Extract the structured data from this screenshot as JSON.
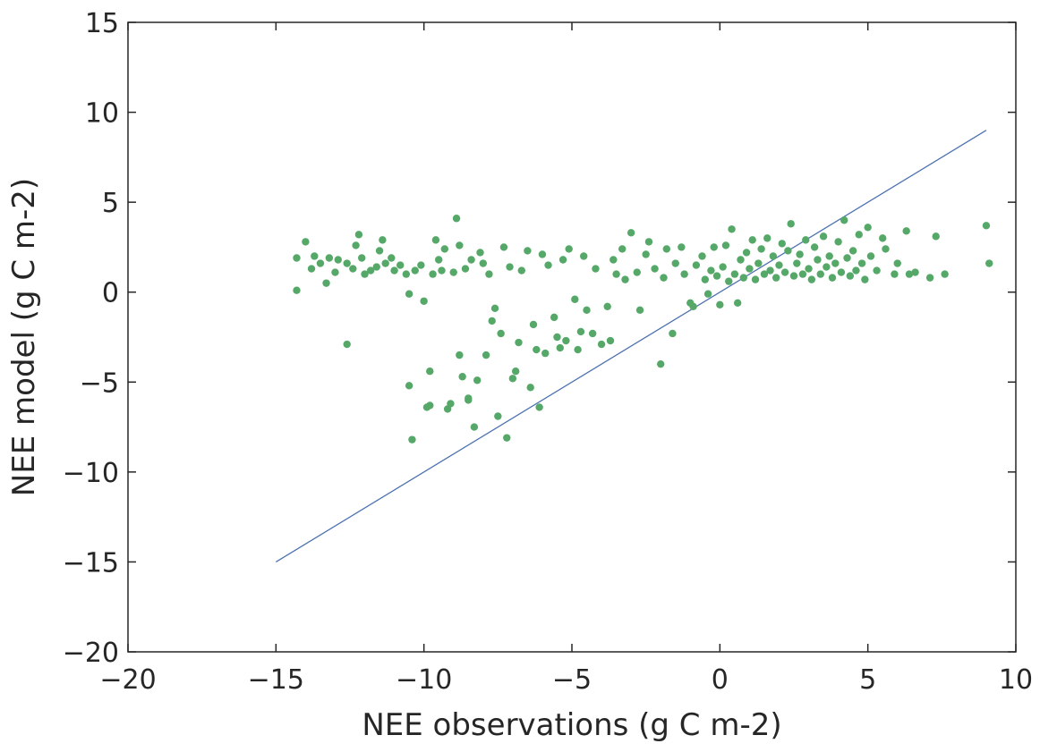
{
  "chart_data": {
    "type": "scatter",
    "title": "",
    "xlabel": "NEE observations (g C m-2)",
    "ylabel": "NEE model (g C m-2)",
    "xlim": [
      -20,
      10
    ],
    "ylim": [
      -20,
      15
    ],
    "x_ticks": [
      -20,
      -15,
      -10,
      -5,
      0,
      5,
      10
    ],
    "y_ticks": [
      -20,
      -15,
      -10,
      -5,
      0,
      5,
      10,
      15
    ],
    "x_tick_labels": [
      "−20",
      "−15",
      "−10",
      "−5",
      "0",
      "5",
      "10"
    ],
    "y_tick_labels": [
      "−20",
      "−15",
      "−10",
      "−5",
      "0",
      "5",
      "10",
      "15"
    ],
    "grid": false,
    "colors": {
      "points": "#55a868",
      "line": "#4c72b0",
      "axes": "#262626"
    },
    "reference_line": {
      "x": [
        -15,
        9
      ],
      "y": [
        -15,
        9
      ]
    },
    "points": [
      [
        -14.3,
        1.9
      ],
      [
        -14.3,
        0.1
      ],
      [
        -14.0,
        2.8
      ],
      [
        -13.8,
        1.3
      ],
      [
        -13.7,
        2.0
      ],
      [
        -13.5,
        1.6
      ],
      [
        -13.3,
        0.5
      ],
      [
        -13.2,
        1.9
      ],
      [
        -13.0,
        1.1
      ],
      [
        -12.9,
        1.8
      ],
      [
        -12.6,
        1.6
      ],
      [
        -12.6,
        -2.9
      ],
      [
        -12.4,
        1.3
      ],
      [
        -12.3,
        2.6
      ],
      [
        -12.2,
        3.2
      ],
      [
        -12.1,
        1.9
      ],
      [
        -12.0,
        1.0
      ],
      [
        -11.8,
        1.2
      ],
      [
        -11.6,
        1.4
      ],
      [
        -11.5,
        2.3
      ],
      [
        -11.4,
        2.9
      ],
      [
        -11.3,
        1.6
      ],
      [
        -11.1,
        1.9
      ],
      [
        -11.0,
        1.2
      ],
      [
        -10.8,
        1.5
      ],
      [
        -10.6,
        1.0
      ],
      [
        -10.5,
        -0.1
      ],
      [
        -10.5,
        -5.2
      ],
      [
        -10.4,
        -8.2
      ],
      [
        -10.3,
        1.2
      ],
      [
        -10.1,
        1.5
      ],
      [
        -10.0,
        -0.5
      ],
      [
        -9.9,
        -6.4
      ],
      [
        -9.8,
        -6.3
      ],
      [
        -9.8,
        -4.4
      ],
      [
        -9.7,
        1.0
      ],
      [
        -9.6,
        2.9
      ],
      [
        -9.5,
        1.8
      ],
      [
        -9.4,
        1.2
      ],
      [
        -9.3,
        2.4
      ],
      [
        -9.2,
        -6.5
      ],
      [
        -9.1,
        -6.2
      ],
      [
        -9.0,
        1.1
      ],
      [
        -8.9,
        4.1
      ],
      [
        -8.8,
        2.6
      ],
      [
        -8.8,
        -3.5
      ],
      [
        -8.7,
        -4.7
      ],
      [
        -8.6,
        1.3
      ],
      [
        -8.5,
        -5.9
      ],
      [
        -8.5,
        -6.0
      ],
      [
        -8.4,
        1.8
      ],
      [
        -8.3,
        -7.5
      ],
      [
        -8.2,
        -4.9
      ],
      [
        -8.1,
        2.2
      ],
      [
        -8.0,
        1.6
      ],
      [
        -7.9,
        -3.5
      ],
      [
        -7.8,
        1.0
      ],
      [
        -7.7,
        -1.6
      ],
      [
        -7.6,
        -0.9
      ],
      [
        -7.5,
        -6.9
      ],
      [
        -7.4,
        -2.3
      ],
      [
        -7.3,
        2.5
      ],
      [
        -7.2,
        -8.1
      ],
      [
        -7.1,
        1.4
      ],
      [
        -7.0,
        -4.8
      ],
      [
        -6.9,
        -4.4
      ],
      [
        -6.8,
        -2.8
      ],
      [
        -6.7,
        1.2
      ],
      [
        -6.5,
        2.3
      ],
      [
        -6.4,
        -5.3
      ],
      [
        -6.3,
        -1.8
      ],
      [
        -6.2,
        -3.2
      ],
      [
        -6.1,
        -6.4
      ],
      [
        -6.0,
        2.1
      ],
      [
        -5.9,
        -3.4
      ],
      [
        -5.8,
        1.5
      ],
      [
        -5.6,
        -1.4
      ],
      [
        -5.5,
        -2.5
      ],
      [
        -5.4,
        -3.1
      ],
      [
        -5.3,
        1.8
      ],
      [
        -5.2,
        -2.7
      ],
      [
        -5.1,
        2.4
      ],
      [
        -4.9,
        -0.4
      ],
      [
        -4.8,
        -3.2
      ],
      [
        -4.7,
        -2.2
      ],
      [
        -4.6,
        2.0
      ],
      [
        -4.5,
        -1.0
      ],
      [
        -4.3,
        -2.3
      ],
      [
        -4.2,
        1.3
      ],
      [
        -4.0,
        -2.9
      ],
      [
        -3.8,
        -0.8
      ],
      [
        -3.7,
        -2.7
      ],
      [
        -3.6,
        1.8
      ],
      [
        -3.5,
        1.0
      ],
      [
        -3.3,
        2.4
      ],
      [
        -3.2,
        0.7
      ],
      [
        -3.0,
        3.3
      ],
      [
        -2.8,
        1.1
      ],
      [
        -2.7,
        -1.0
      ],
      [
        -2.5,
        2.1
      ],
      [
        -2.4,
        2.8
      ],
      [
        -2.2,
        1.3
      ],
      [
        -2.0,
        -4.0
      ],
      [
        -1.9,
        0.8
      ],
      [
        -1.8,
        2.4
      ],
      [
        -1.6,
        -2.3
      ],
      [
        -1.5,
        1.6
      ],
      [
        -1.3,
        2.5
      ],
      [
        -1.2,
        1.0
      ],
      [
        -1.0,
        -0.6
      ],
      [
        -0.9,
        -0.8
      ],
      [
        -0.8,
        1.5
      ],
      [
        -0.6,
        2.0
      ],
      [
        -0.5,
        0.7
      ],
      [
        -0.4,
        -0.1
      ],
      [
        -0.3,
        1.2
      ],
      [
        -0.2,
        2.5
      ],
      [
        -0.1,
        0.9
      ],
      [
        0.0,
        -0.7
      ],
      [
        0.1,
        1.4
      ],
      [
        0.2,
        2.6
      ],
      [
        0.3,
        0.6
      ],
      [
        0.4,
        3.5
      ],
      [
        0.5,
        1.0
      ],
      [
        0.6,
        -0.6
      ],
      [
        0.7,
        1.8
      ],
      [
        0.8,
        0.8
      ],
      [
        0.9,
        2.2
      ],
      [
        1.0,
        1.3
      ],
      [
        1.1,
        2.9
      ],
      [
        1.2,
        0.7
      ],
      [
        1.3,
        1.6
      ],
      [
        1.4,
        2.4
      ],
      [
        1.5,
        1.0
      ],
      [
        1.6,
        3.0
      ],
      [
        1.7,
        1.2
      ],
      [
        1.8,
        2.0
      ],
      [
        1.9,
        0.8
      ],
      [
        2.0,
        1.5
      ],
      [
        2.1,
        2.7
      ],
      [
        2.2,
        1.1
      ],
      [
        2.3,
        2.3
      ],
      [
        2.4,
        3.8
      ],
      [
        2.5,
        0.9
      ],
      [
        2.6,
        1.6
      ],
      [
        2.7,
        2.1
      ],
      [
        2.8,
        1.0
      ],
      [
        2.9,
        2.9
      ],
      [
        3.0,
        1.3
      ],
      [
        3.1,
        0.7
      ],
      [
        3.2,
        2.5
      ],
      [
        3.3,
        1.8
      ],
      [
        3.4,
        1.0
      ],
      [
        3.5,
        3.1
      ],
      [
        3.6,
        1.4
      ],
      [
        3.7,
        2.0
      ],
      [
        3.8,
        0.8
      ],
      [
        3.9,
        1.6
      ],
      [
        4.0,
        2.8
      ],
      [
        4.1,
        1.1
      ],
      [
        4.2,
        4.0
      ],
      [
        4.3,
        1.9
      ],
      [
        4.4,
        0.9
      ],
      [
        4.5,
        2.3
      ],
      [
        4.6,
        1.2
      ],
      [
        4.7,
        3.2
      ],
      [
        4.8,
        1.6
      ],
      [
        4.9,
        0.7
      ],
      [
        5.0,
        3.6
      ],
      [
        5.1,
        2.0
      ],
      [
        5.3,
        1.2
      ],
      [
        5.5,
        3.0
      ],
      [
        5.6,
        2.4
      ],
      [
        5.9,
        1.0
      ],
      [
        6.0,
        1.6
      ],
      [
        6.3,
        3.4
      ],
      [
        6.4,
        1.0
      ],
      [
        6.6,
        1.1
      ],
      [
        7.1,
        0.8
      ],
      [
        7.3,
        3.1
      ],
      [
        7.6,
        1.0
      ],
      [
        9.0,
        3.7
      ],
      [
        9.1,
        1.6
      ]
    ]
  }
}
